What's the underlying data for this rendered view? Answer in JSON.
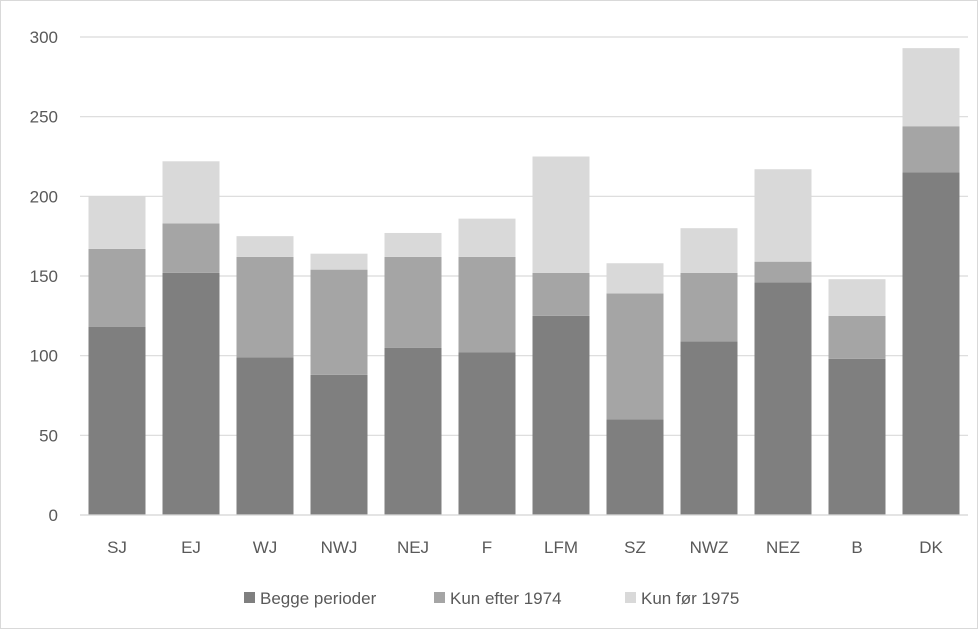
{
  "chart_data": {
    "type": "bar",
    "stacked": true,
    "title": "",
    "xlabel": "",
    "ylabel": "",
    "ylim": [
      0,
      300
    ],
    "yticks": [
      0,
      50,
      100,
      150,
      200,
      250,
      300
    ],
    "grid": "horizontal",
    "legend_position": "bottom",
    "categories": [
      "SJ",
      "EJ",
      "WJ",
      "NWJ",
      "NEJ",
      "F",
      "LFM",
      "SZ",
      "NWZ",
      "NEZ",
      "B",
      "DK"
    ],
    "series": [
      {
        "name": "Begge perioder",
        "color": "#7f7f7f",
        "values": [
          118,
          152,
          99,
          88,
          105,
          102,
          125,
          60,
          109,
          146,
          98,
          215
        ]
      },
      {
        "name": "Kun efter 1974",
        "color": "#a5a5a5",
        "values": [
          49,
          31,
          63,
          66,
          57,
          60,
          27,
          79,
          43,
          13,
          27,
          29
        ]
      },
      {
        "name": "Kun før 1975",
        "color": "#d9d9d9",
        "values": [
          33,
          39,
          13,
          10,
          15,
          24,
          73,
          19,
          28,
          58,
          23,
          49
        ]
      }
    ]
  }
}
